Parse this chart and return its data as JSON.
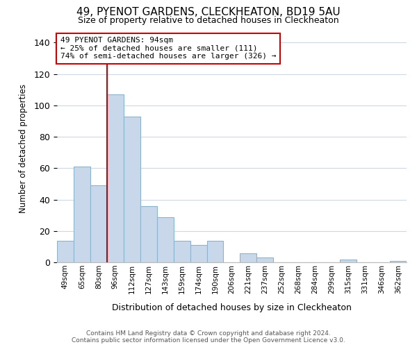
{
  "title": "49, PYENOT GARDENS, CLECKHEATON, BD19 5AU",
  "subtitle": "Size of property relative to detached houses in Cleckheaton",
  "xlabel": "Distribution of detached houses by size in Cleckheaton",
  "ylabel": "Number of detached properties",
  "categories": [
    "49sqm",
    "65sqm",
    "80sqm",
    "96sqm",
    "112sqm",
    "127sqm",
    "143sqm",
    "159sqm",
    "174sqm",
    "190sqm",
    "206sqm",
    "221sqm",
    "237sqm",
    "252sqm",
    "268sqm",
    "284sqm",
    "299sqm",
    "315sqm",
    "331sqm",
    "346sqm",
    "362sqm"
  ],
  "values": [
    14,
    61,
    49,
    107,
    93,
    36,
    29,
    14,
    11,
    14,
    0,
    6,
    3,
    0,
    0,
    0,
    0,
    2,
    0,
    0,
    1
  ],
  "bar_color": "#c8d8ea",
  "bar_edge_color": "#8ab4cc",
  "vline_color": "#cc0000",
  "vline_index": 3,
  "ylim": [
    0,
    145
  ],
  "yticks": [
    0,
    20,
    40,
    60,
    80,
    100,
    120,
    140
  ],
  "annotation_title": "49 PYENOT GARDENS: 94sqm",
  "annotation_line1": "← 25% of detached houses are smaller (111)",
  "annotation_line2": "74% of semi-detached houses are larger (326) →",
  "footer_line1": "Contains HM Land Registry data © Crown copyright and database right 2024.",
  "footer_line2": "Contains public sector information licensed under the Open Government Licence v3.0.",
  "background_color": "#ffffff",
  "grid_color": "#cdd8e3"
}
